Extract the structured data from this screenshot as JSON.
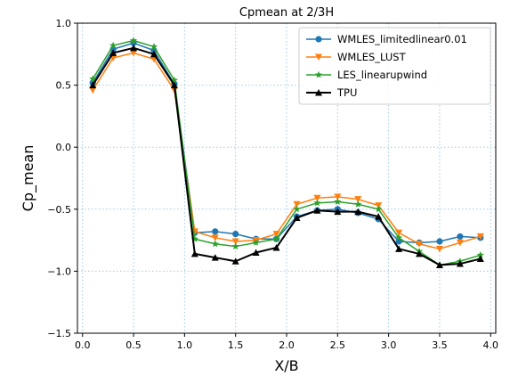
{
  "chart_data": {
    "type": "line",
    "title": "Cpmean at 2/3H",
    "xlabel": "X/B",
    "ylabel": "Cp_mean",
    "xlim": [
      -0.05,
      4.05
    ],
    "ylim": [
      -1.5,
      1.0
    ],
    "xticks": [
      "0.0",
      "0.5",
      "1.0",
      "1.5",
      "2.0",
      "2.5",
      "3.0",
      "3.5",
      "4.0"
    ],
    "yticks": [
      "−1.5",
      "−1.0",
      "−0.5",
      "0.0",
      "0.5",
      "1.0"
    ],
    "grid": true,
    "legend_position": "top-right",
    "x": [
      0.1,
      0.3,
      0.5,
      0.7,
      0.9,
      1.1,
      1.3,
      1.5,
      1.7,
      1.9,
      2.1,
      2.3,
      2.5,
      2.7,
      2.9,
      3.1,
      3.3,
      3.5,
      3.7,
      3.9
    ],
    "series": [
      {
        "name": "WMLES_limitedlinear0.01",
        "color": "#1f77b4",
        "marker": "circle",
        "values": [
          0.52,
          0.79,
          0.84,
          0.78,
          0.51,
          -0.69,
          -0.68,
          -0.7,
          -0.74,
          -0.74,
          -0.56,
          -0.51,
          -0.5,
          -0.53,
          -0.58,
          -0.76,
          -0.77,
          -0.76,
          -0.72,
          -0.73
        ]
      },
      {
        "name": "WMLES_LUST",
        "color": "#ff7f0e",
        "marker": "triangle-down",
        "values": [
          0.46,
          0.72,
          0.76,
          0.71,
          0.46,
          -0.68,
          -0.73,
          -0.76,
          -0.75,
          -0.7,
          -0.46,
          -0.41,
          -0.4,
          -0.42,
          -0.47,
          -0.69,
          -0.78,
          -0.82,
          -0.77,
          -0.72
        ]
      },
      {
        "name": "LES_linearupwind",
        "color": "#2ca02c",
        "marker": "star",
        "values": [
          0.55,
          0.82,
          0.86,
          0.81,
          0.54,
          -0.74,
          -0.78,
          -0.8,
          -0.77,
          -0.74,
          -0.5,
          -0.45,
          -0.44,
          -0.46,
          -0.5,
          -0.73,
          -0.84,
          -0.95,
          -0.92,
          -0.87
        ]
      },
      {
        "name": "TPU",
        "color": "#000000",
        "marker": "triangle-up",
        "values": [
          0.5,
          0.76,
          0.8,
          0.75,
          0.5,
          -0.86,
          -0.89,
          -0.92,
          -0.85,
          -0.81,
          -0.57,
          -0.51,
          -0.52,
          -0.52,
          -0.56,
          -0.82,
          -0.86,
          -0.95,
          -0.94,
          -0.9
        ]
      }
    ]
  }
}
